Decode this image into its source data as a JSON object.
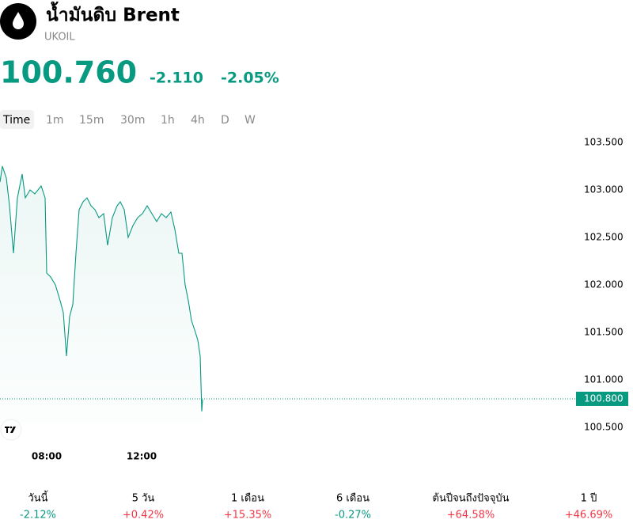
{
  "header": {
    "title": "น้ำมันดิบ Brent",
    "symbol": "UKOIL",
    "price": "100.760",
    "change": "-2.110",
    "change_percent": "-2.05%"
  },
  "timeframes": [
    "Time",
    "1m",
    "15m",
    "30m",
    "1h",
    "4h",
    "D",
    "W"
  ],
  "chart_data": {
    "type": "line",
    "color": "#089981",
    "grid": false,
    "x": [
      6.033,
      6.133,
      6.3,
      6.433,
      6.6,
      6.767,
      6.967,
      7.1,
      7.3,
      7.5,
      7.767,
      7.933,
      8.0,
      8.167,
      8.367,
      8.567,
      8.7,
      8.833,
      8.967,
      9.1,
      9.233,
      9.367,
      9.533,
      9.7,
      9.867,
      10.033,
      10.2,
      10.4,
      10.567,
      10.767,
      10.967,
      11.1,
      11.267,
      11.433,
      11.633,
      11.833,
      12.033,
      12.233,
      12.433,
      12.633,
      12.833,
      13.033,
      13.233,
      13.4,
      13.567,
      13.7,
      13.833,
      13.967,
      14.1,
      14.267,
      14.367,
      14.467,
      14.533,
      14.567
    ],
    "values": [
      103.083,
      103.25,
      103.125,
      102.833,
      102.333,
      102.917,
      103.167,
      102.917,
      103.0,
      102.958,
      103.042,
      102.917,
      102.125,
      102.083,
      102.0,
      101.833,
      101.708,
      101.25,
      101.667,
      101.792,
      102.333,
      102.792,
      102.875,
      102.917,
      102.833,
      102.792,
      102.708,
      102.75,
      102.417,
      102.708,
      102.833,
      102.875,
      102.792,
      102.5,
      102.625,
      102.708,
      102.75,
      102.833,
      102.75,
      102.667,
      102.75,
      102.708,
      102.767,
      102.583,
      102.333,
      102.333,
      102.0,
      101.833,
      101.625,
      101.5,
      101.417,
      101.25,
      100.667,
      100.792
    ],
    "xlim": [
      6.033,
      30.2
    ],
    "xticks": [
      {
        "value": 8,
        "label": "08:00"
      },
      {
        "value": 12,
        "label": "12:00"
      }
    ],
    "ylim": [
      100.333,
      103.625
    ],
    "yticks": [
      {
        "value": 100.5,
        "label": "100.500"
      },
      {
        "value": 101,
        "label": "101.000"
      },
      {
        "value": 101.5,
        "label": "101.500"
      },
      {
        "value": 102,
        "label": "102.000"
      },
      {
        "value": 102.5,
        "label": "102.500"
      },
      {
        "value": 103,
        "label": "103.000"
      },
      {
        "value": 103.5,
        "label": "103.500"
      }
    ],
    "last_value": {
      "value": 100.8,
      "label": "100.800"
    }
  },
  "performance": [
    {
      "label": "วันนี้",
      "value": "-2.12%"
    },
    {
      "label": "5 วัน",
      "value": "+0.42%"
    },
    {
      "label": "1 เดือน",
      "value": "+15.35%"
    },
    {
      "label": "6 เดือน",
      "value": "-0.27%"
    },
    {
      "label": "ต้นปีจนถึงปัจจุบัน",
      "value": "+64.58%"
    },
    {
      "label": "1 ปี",
      "value": "+46.69%"
    }
  ]
}
